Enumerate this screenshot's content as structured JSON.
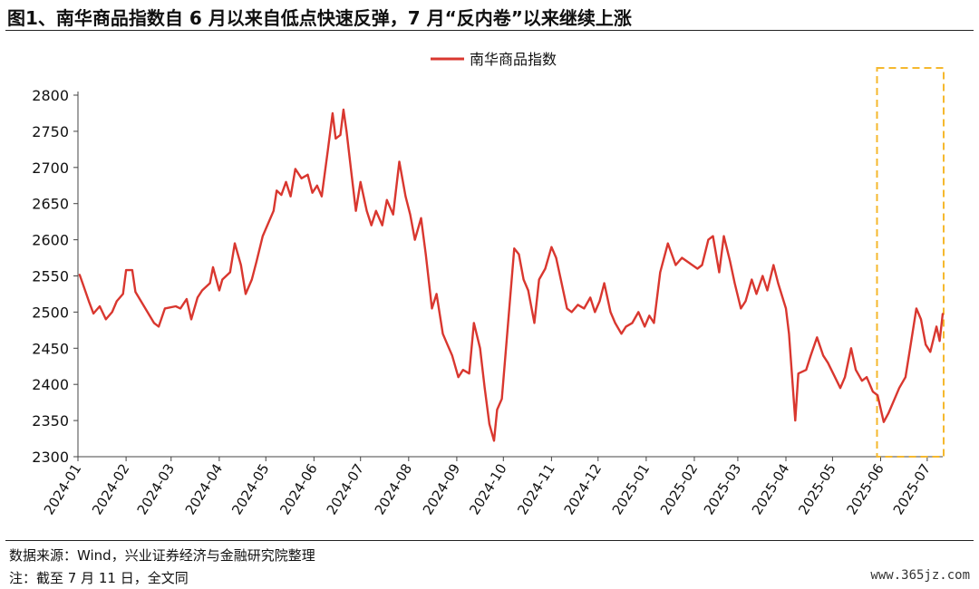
{
  "figure": {
    "title": "图1、南华商品指数自 6 月以来自低点快速反弹，7 月“反内卷”以来继续上涨",
    "source": "数据来源：Wind，兴业证券经济与金融研究院整理",
    "note": "注：截至 7 月 11 日，全文同",
    "watermark": "www.365jz.com"
  },
  "chart_data": {
    "type": "line",
    "title": "",
    "xlabel": "",
    "ylabel": "",
    "ylim": [
      2300,
      2800
    ],
    "yticks": [
      2300,
      2350,
      2400,
      2450,
      2500,
      2550,
      2600,
      2650,
      2700,
      2750,
      2800
    ],
    "x_start": "2024-01",
    "x_end": "2025-07-11",
    "categories": [
      "2024-01",
      "2024-02",
      "2024-03",
      "2024-04",
      "2024-05",
      "2024-06",
      "2024-07",
      "2024-08",
      "2024-09",
      "2024-10",
      "2024-11",
      "2024-12",
      "2025-01",
      "2025-02",
      "2025-03",
      "2025-04",
      "2025-05",
      "2025-06",
      "2025-07"
    ],
    "grid": false,
    "legend_position": "top-center",
    "series": [
      {
        "name": "南华商品指数",
        "color": "#d9372f",
        "points": [
          [
            "2024-01-02",
            2552
          ],
          [
            "2024-01-04",
            2540
          ],
          [
            "2024-01-08",
            2515
          ],
          [
            "2024-01-11",
            2498
          ],
          [
            "2024-01-15",
            2508
          ],
          [
            "2024-01-19",
            2490
          ],
          [
            "2024-01-23",
            2500
          ],
          [
            "2024-01-26",
            2515
          ],
          [
            "2024-01-30",
            2525
          ],
          [
            "2024-02-01",
            2558
          ],
          [
            "2024-02-05",
            2558
          ],
          [
            "2024-02-07",
            2528
          ],
          [
            "2024-02-19",
            2485
          ],
          [
            "2024-02-22",
            2480
          ],
          [
            "2024-02-26",
            2505
          ],
          [
            "2024-03-04",
            2508
          ],
          [
            "2024-03-07",
            2505
          ],
          [
            "2024-03-11",
            2518
          ],
          [
            "2024-03-14",
            2490
          ],
          [
            "2024-03-18",
            2520
          ],
          [
            "2024-03-21",
            2530
          ],
          [
            "2024-03-26",
            2540
          ],
          [
            "2024-03-28",
            2562
          ],
          [
            "2024-04-01",
            2530
          ],
          [
            "2024-04-03",
            2545
          ],
          [
            "2024-04-08",
            2555
          ],
          [
            "2024-04-11",
            2595
          ],
          [
            "2024-04-15",
            2565
          ],
          [
            "2024-04-18",
            2525
          ],
          [
            "2024-04-22",
            2545
          ],
          [
            "2024-04-25",
            2570
          ],
          [
            "2024-04-29",
            2605
          ],
          [
            "2024-05-06",
            2640
          ],
          [
            "2024-05-08",
            2668
          ],
          [
            "2024-05-11",
            2662
          ],
          [
            "2024-05-14",
            2680
          ],
          [
            "2024-05-17",
            2660
          ],
          [
            "2024-05-20",
            2698
          ],
          [
            "2024-05-24",
            2685
          ],
          [
            "2024-05-28",
            2690
          ],
          [
            "2024-05-31",
            2665
          ],
          [
            "2024-06-03",
            2675
          ],
          [
            "2024-06-06",
            2660
          ],
          [
            "2024-06-10",
            2725
          ],
          [
            "2024-06-13",
            2775
          ],
          [
            "2024-06-15",
            2740
          ],
          [
            "2024-06-18",
            2745
          ],
          [
            "2024-06-20",
            2780
          ],
          [
            "2024-06-22",
            2750
          ],
          [
            "2024-06-25",
            2695
          ],
          [
            "2024-06-28",
            2640
          ],
          [
            "2024-07-01",
            2680
          ],
          [
            "2024-07-05",
            2640
          ],
          [
            "2024-07-08",
            2620
          ],
          [
            "2024-07-11",
            2640
          ],
          [
            "2024-07-15",
            2620
          ],
          [
            "2024-07-18",
            2655
          ],
          [
            "2024-07-22",
            2635
          ],
          [
            "2024-07-26",
            2708
          ],
          [
            "2024-07-30",
            2660
          ],
          [
            "2024-08-02",
            2635
          ],
          [
            "2024-08-05",
            2600
          ],
          [
            "2024-08-09",
            2630
          ],
          [
            "2024-08-12",
            2580
          ],
          [
            "2024-08-16",
            2505
          ],
          [
            "2024-08-19",
            2525
          ],
          [
            "2024-08-23",
            2470
          ],
          [
            "2024-08-26",
            2455
          ],
          [
            "2024-08-29",
            2440
          ],
          [
            "2024-09-02",
            2410
          ],
          [
            "2024-09-05",
            2420
          ],
          [
            "2024-09-09",
            2415
          ],
          [
            "2024-09-12",
            2485
          ],
          [
            "2024-09-16",
            2450
          ],
          [
            "2024-09-19",
            2395
          ],
          [
            "2024-09-22",
            2345
          ],
          [
            "2024-09-25",
            2322
          ],
          [
            "2024-09-27",
            2365
          ],
          [
            "2024-09-30",
            2380
          ],
          [
            "2024-10-08",
            2588
          ],
          [
            "2024-10-11",
            2580
          ],
          [
            "2024-10-14",
            2545
          ],
          [
            "2024-10-17",
            2530
          ],
          [
            "2024-10-21",
            2485
          ],
          [
            "2024-10-24",
            2545
          ],
          [
            "2024-10-28",
            2560
          ],
          [
            "2024-11-01",
            2590
          ],
          [
            "2024-11-04",
            2575
          ],
          [
            "2024-11-07",
            2545
          ],
          [
            "2024-11-11",
            2505
          ],
          [
            "2024-11-14",
            2500
          ],
          [
            "2024-11-18",
            2510
          ],
          [
            "2024-11-22",
            2505
          ],
          [
            "2024-11-26",
            2520
          ],
          [
            "2024-11-29",
            2500
          ],
          [
            "2024-12-02",
            2515
          ],
          [
            "2024-12-05",
            2540
          ],
          [
            "2024-12-09",
            2500
          ],
          [
            "2024-12-12",
            2485
          ],
          [
            "2024-12-16",
            2470
          ],
          [
            "2024-12-19",
            2480
          ],
          [
            "2024-12-23",
            2485
          ],
          [
            "2024-12-27",
            2500
          ],
          [
            "2024-12-31",
            2480
          ],
          [
            "2025-01-03",
            2495
          ],
          [
            "2025-01-06",
            2485
          ],
          [
            "2025-01-10",
            2555
          ],
          [
            "2025-01-15",
            2595
          ],
          [
            "2025-01-20",
            2565
          ],
          [
            "2025-01-24",
            2575
          ],
          [
            "2025-02-03",
            2560
          ],
          [
            "2025-02-06",
            2565
          ],
          [
            "2025-02-10",
            2600
          ],
          [
            "2025-02-13",
            2605
          ],
          [
            "2025-02-17",
            2555
          ],
          [
            "2025-02-20",
            2605
          ],
          [
            "2025-02-24",
            2570
          ],
          [
            "2025-02-27",
            2540
          ],
          [
            "2025-03-03",
            2505
          ],
          [
            "2025-03-06",
            2515
          ],
          [
            "2025-03-10",
            2545
          ],
          [
            "2025-03-13",
            2525
          ],
          [
            "2025-03-17",
            2550
          ],
          [
            "2025-03-20",
            2530
          ],
          [
            "2025-03-24",
            2565
          ],
          [
            "2025-03-27",
            2540
          ],
          [
            "2025-04-01",
            2505
          ],
          [
            "2025-04-03",
            2470
          ],
          [
            "2025-04-07",
            2350
          ],
          [
            "2025-04-09",
            2415
          ],
          [
            "2025-04-14",
            2420
          ],
          [
            "2025-04-17",
            2440
          ],
          [
            "2025-04-21",
            2465
          ],
          [
            "2025-04-25",
            2440
          ],
          [
            "2025-04-28",
            2430
          ],
          [
            "2025-05-06",
            2395
          ],
          [
            "2025-05-09",
            2410
          ],
          [
            "2025-05-13",
            2450
          ],
          [
            "2025-05-16",
            2420
          ],
          [
            "2025-05-20",
            2405
          ],
          [
            "2025-05-23",
            2410
          ],
          [
            "2025-05-27",
            2390
          ],
          [
            "2025-05-30",
            2385
          ],
          [
            "2025-06-03",
            2348
          ],
          [
            "2025-06-06",
            2360
          ],
          [
            "2025-06-10",
            2380
          ],
          [
            "2025-06-13",
            2395
          ],
          [
            "2025-06-17",
            2410
          ],
          [
            "2025-06-20",
            2450
          ],
          [
            "2025-06-24",
            2505
          ],
          [
            "2025-06-27",
            2490
          ],
          [
            "2025-06-30",
            2455
          ],
          [
            "2025-07-03",
            2445
          ],
          [
            "2025-07-07",
            2480
          ],
          [
            "2025-07-09",
            2460
          ],
          [
            "2025-07-11",
            2498
          ]
        ]
      }
    ],
    "highlight": {
      "from": "2025-06-01",
      "to": "2025-07-11",
      "style": "dashed box",
      "color": "#f5b82e"
    }
  }
}
